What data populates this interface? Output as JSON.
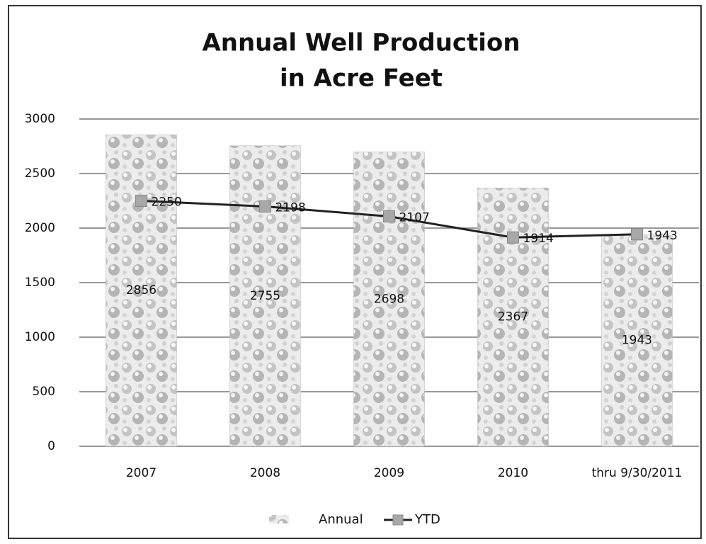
{
  "chart_data": {
    "type": "combo",
    "title": [
      "Annual Well Production",
      "in Acre Feet"
    ],
    "categories": [
      "2007",
      "2008",
      "2009",
      "2010",
      "thru 9/30/2011"
    ],
    "series": [
      {
        "name": "Annual",
        "type": "bar",
        "color": "#b8b8b8",
        "values": [
          2856,
          2755,
          2698,
          2367,
          1943
        ]
      },
      {
        "name": "YTD",
        "type": "line",
        "color": "#222222",
        "marker_color": "#a8a8a8",
        "values": [
          2250,
          2198,
          2107,
          1914,
          1943
        ]
      }
    ],
    "ylim": [
      0,
      3000
    ],
    "yticks": [
      0,
      500,
      1000,
      1500,
      2000,
      2500,
      3000
    ],
    "grid": true,
    "legend": "bottom"
  }
}
